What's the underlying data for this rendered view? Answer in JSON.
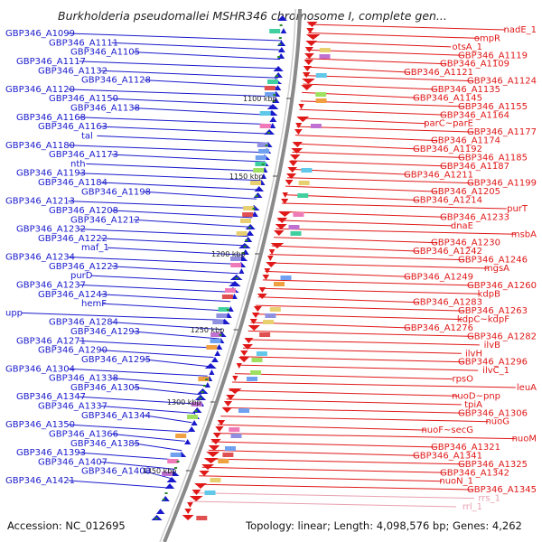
{
  "title": "Burkholderia pseudomallei MSHR346 chromosome I, complete gen...",
  "colors": {
    "left": "#1a1acc",
    "right": "#e01818",
    "rna": "#e8a0b0",
    "backbone": "#8a8a8a",
    "tick": "#2a8a2a"
  },
  "footer": {
    "accession": "Accession: NC_012695",
    "topology": "Topology: linear; Length: 4,098,576 bp; Genes: 4,262"
  },
  "kbp_marks": [
    "1100 kbp",
    "1150 kbp",
    "1200 kbp",
    "1250 kbp",
    "1300 kbp",
    "1350 kbp"
  ],
  "left_labels": [
    "GBP346_A1099",
    "GBP346_A1111",
    "GBP346_A1105",
    "GBP346_A1117",
    "GBP346_A1132",
    "GBP346_A1128",
    "GBP346_A1120",
    "GBP346_A1150",
    "GBP346_A1138",
    "GBP346_A1168",
    "GBP346_A1163",
    "tal",
    "GBP346_A1180",
    "GBP346_A1173",
    "nth",
    "GBP346_A1193",
    "GBP346_A1184",
    "GBP346_A1198",
    "GBP346_A1213",
    "GBP346_A1208",
    "GBP346_A1212",
    "GBP346_A1232",
    "GBP346_A1222",
    "maf_1",
    "GBP346_A1234",
    "GBP346_A1223",
    "purD",
    "GBP346_A1237",
    "GBP346_A1243",
    "hemF",
    "upp",
    "GBP346_A1284",
    "GBP346_A1293",
    "GBP346_A1271",
    "GBP346_A1290",
    "GBP346_A1295",
    "GBP346_A1304",
    "GBP346_A1338",
    "GBP346_A1305",
    "GBP346_A1347",
    "GBP346_A1337",
    "GBP346_A1344",
    "GBP346_A1350",
    "GBP346_A1366",
    "GBP346_A1385",
    "GBP346_A1393",
    "GBP346_A1407",
    "GBP346_A1408",
    "GBP346_A1421"
  ],
  "right_labels": [
    "nadE_1",
    "ompR",
    "otsA_1",
    "GBP346_A1119",
    "GBP346_A1109",
    "GBP346_A1121",
    "GBP346_A1124",
    "GBP346_A1135",
    "GBP346_A1145",
    "GBP346_A1155",
    "GBP346_A1164",
    "parC~parE",
    "GBP346_A1177",
    "GBP346_A1174",
    "GBP346_A1192",
    "GBP346_A1185",
    "GBP346_A1187",
    "GBP346_A1211",
    "GBP346_A1199",
    "GBP346_A1205",
    "GBP346_A1214",
    "purT",
    "GBP346_A1233",
    "dnaE",
    "msbA",
    "GBP346_A1230",
    "GBP346_A1242",
    "GBP346_A1246",
    "mgsA",
    "GBP346_A1249",
    "GBP346_A1260",
    "kdpB",
    "GBP346_A1283",
    "GBP346_A1263",
    "kdpC~kdpF",
    "GBP346_A1276",
    "GBP346_A1282",
    "ilvB",
    "ilvH",
    "GBP346_A1296",
    "ilvC_1",
    "rpsO",
    "leuA",
    "nuoD~pnp",
    "tpiA",
    "GBP346_A1306",
    "nuoG",
    "nuoF~secG",
    "nuoM",
    "GBP346_A1321",
    "GBP346_A1341",
    "GBP346_A1325",
    "GBP346_A1342",
    "nuoN_1",
    "GBP346_A1345",
    "rrs_1",
    "rrl_1"
  ]
}
